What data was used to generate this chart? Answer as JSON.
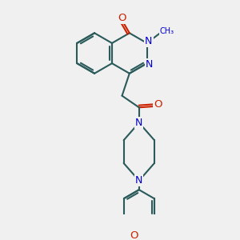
{
  "bg_color": "#f0f0f0",
  "bond_color": "#2a5a5a",
  "bond_width": 1.5,
  "atom_N_color": "#0000cc",
  "atom_O_color": "#cc2200",
  "font_size": 8.5,
  "fig_size": [
    3.0,
    3.0
  ],
  "dpi": 100,
  "xlim": [
    0,
    10
  ],
  "ylim": [
    0,
    10
  ]
}
